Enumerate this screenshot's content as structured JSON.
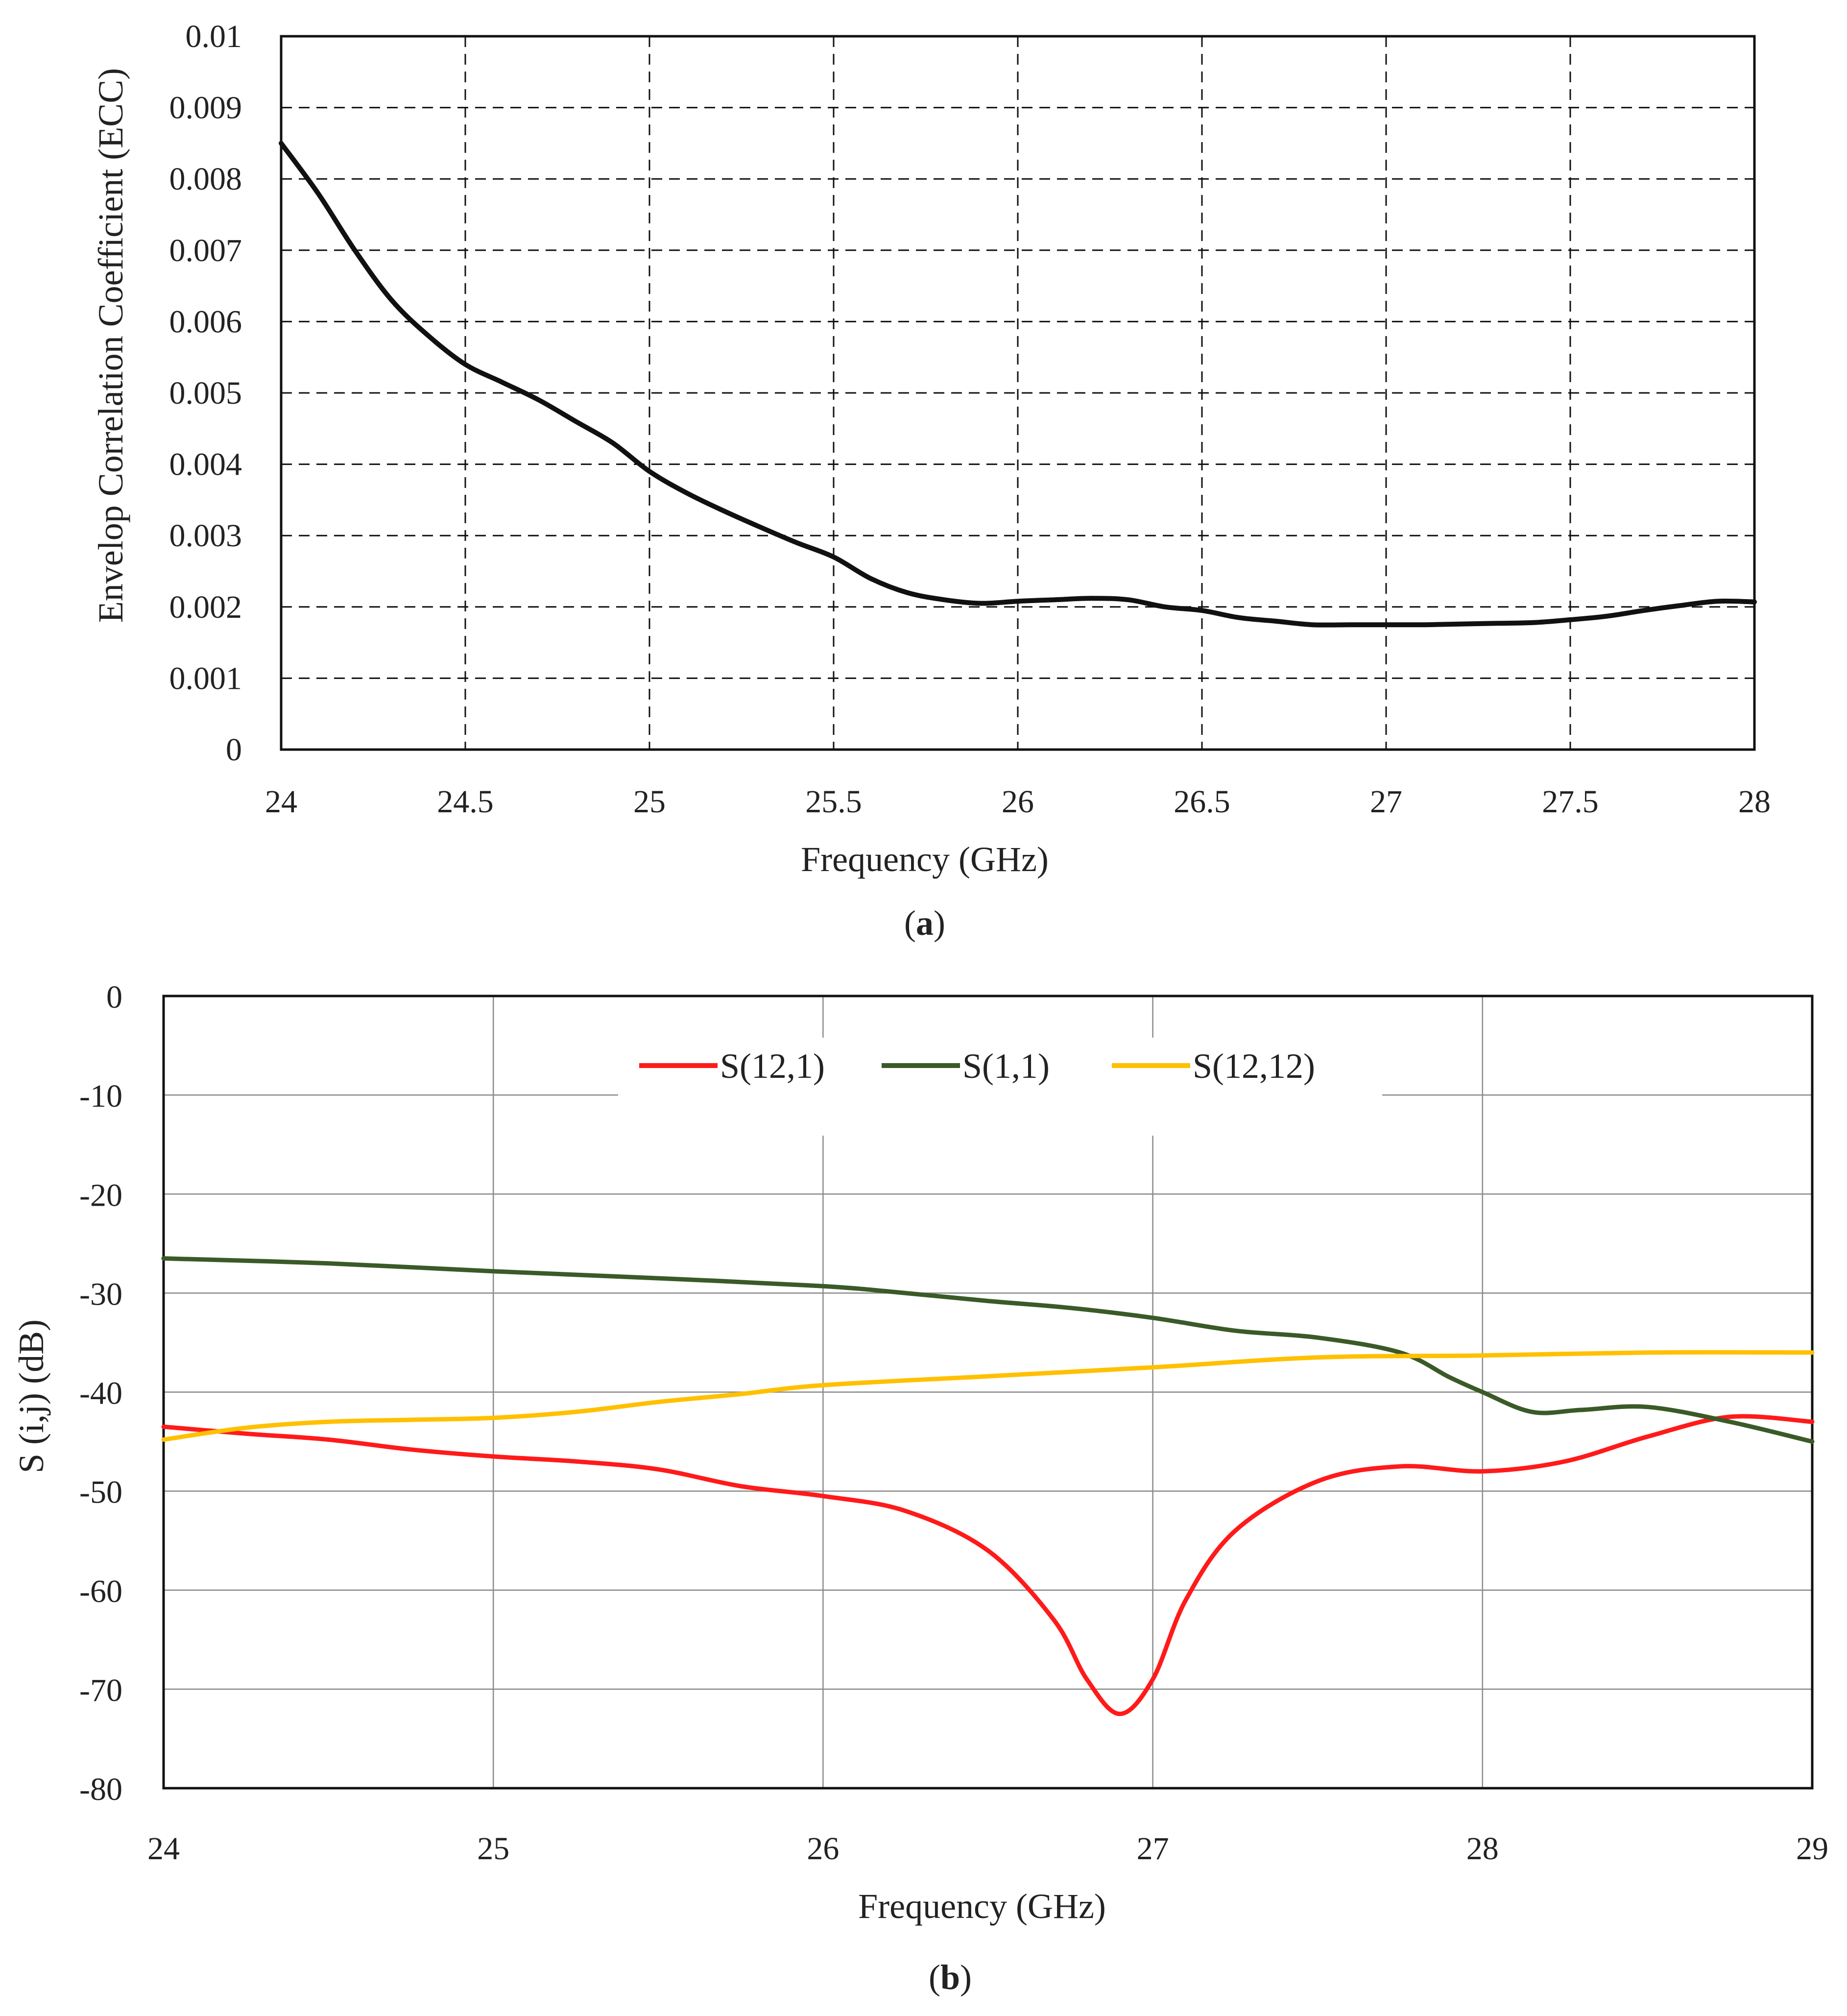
{
  "chart_data": [
    {
      "id": "a",
      "type": "line",
      "caption_label": "a",
      "xlabel": "Frequency (GHz)",
      "ylabel": "Envelop Correlation Coefficient (ECC)",
      "xlim": [
        24,
        28
      ],
      "ylim": [
        0,
        0.01
      ],
      "xticks": [
        24,
        24.5,
        25,
        25.5,
        26,
        26.5,
        27,
        27.5,
        28
      ],
      "yticks": [
        0,
        0.001,
        0.002,
        0.003,
        0.004,
        0.005,
        0.006,
        0.007,
        0.008,
        0.009,
        0.01
      ],
      "xtick_labels": [
        "24",
        "24.5",
        "25",
        "25.5",
        "26",
        "26.5",
        "27",
        "27.5",
        "28"
      ],
      "ytick_labels": [
        "0",
        "0.001",
        "0.002",
        "0.003",
        "0.004",
        "0.005",
        "0.006",
        "0.007",
        "0.008",
        "0.009",
        "0.01"
      ],
      "grid": "dashed",
      "series": [
        {
          "name": "ECC",
          "color": "#111111",
          "x": [
            24.0,
            24.1,
            24.2,
            24.3,
            24.4,
            24.5,
            24.6,
            24.7,
            24.8,
            24.9,
            25.0,
            25.1,
            25.2,
            25.3,
            25.4,
            25.5,
            25.6,
            25.7,
            25.8,
            25.9,
            26.0,
            26.1,
            26.2,
            26.3,
            26.4,
            26.5,
            26.6,
            26.7,
            26.8,
            26.9,
            27.0,
            27.1,
            27.2,
            27.3,
            27.4,
            27.5,
            27.6,
            27.7,
            27.8,
            27.9,
            28.0
          ],
          "y": [
            0.0085,
            0.0078,
            0.007,
            0.0063,
            0.0058,
            0.0054,
            0.00515,
            0.0049,
            0.0046,
            0.0043,
            0.0039,
            0.0036,
            0.00335,
            0.00312,
            0.0029,
            0.0027,
            0.0024,
            0.0022,
            0.0021,
            0.00205,
            0.00208,
            0.0021,
            0.00212,
            0.0021,
            0.002,
            0.00195,
            0.00185,
            0.0018,
            0.00175,
            0.00175,
            0.00175,
            0.00175,
            0.00176,
            0.00177,
            0.00178,
            0.00182,
            0.00187,
            0.00195,
            0.00202,
            0.00208,
            0.00207
          ]
        }
      ]
    },
    {
      "id": "b",
      "type": "line",
      "caption_label": "b",
      "xlabel": "Frequency (GHz)",
      "ylabel": "S (i,j) (dB)",
      "xlim": [
        24,
        29
      ],
      "ylim": [
        -80,
        0
      ],
      "xticks": [
        24,
        25,
        26,
        27,
        28,
        29
      ],
      "yticks": [
        0,
        -10,
        -20,
        -30,
        -40,
        -50,
        -60,
        -70,
        -80
      ],
      "xtick_labels": [
        "24",
        "25",
        "26",
        "27",
        "28",
        "29"
      ],
      "ytick_labels": [
        "0",
        "-10",
        "-20",
        "-30",
        "-40",
        "-50",
        "-60",
        "-70",
        "-80"
      ],
      "grid": "solid",
      "legend_position": "top-center",
      "series": [
        {
          "name": "S(12,1)",
          "color": "#ff1a1a",
          "x": [
            24.0,
            24.25,
            24.5,
            24.75,
            25.0,
            25.25,
            25.5,
            25.75,
            26.0,
            26.25,
            26.5,
            26.7,
            26.8,
            26.9,
            27.0,
            27.1,
            27.25,
            27.5,
            27.75,
            28.0,
            28.25,
            28.5,
            28.75,
            29.0
          ],
          "y": [
            -43.5,
            -44.2,
            -44.8,
            -45.8,
            -46.5,
            -47.0,
            -47.8,
            -49.5,
            -50.5,
            -52.0,
            -56.0,
            -63.0,
            -69.0,
            -72.5,
            -69.0,
            -61.0,
            -54.0,
            -49.0,
            -47.5,
            -48.0,
            -47.0,
            -44.5,
            -42.5,
            -43.0
          ]
        },
        {
          "name": "S(1,1)",
          "color": "#3a5a27",
          "x": [
            24.0,
            24.5,
            25.0,
            25.5,
            26.0,
            26.25,
            26.5,
            26.75,
            27.0,
            27.25,
            27.5,
            27.75,
            27.9,
            28.0,
            28.15,
            28.3,
            28.5,
            28.75,
            29.0
          ],
          "y": [
            -26.5,
            -27.0,
            -27.8,
            -28.5,
            -29.3,
            -30.0,
            -30.8,
            -31.5,
            -32.5,
            -33.8,
            -34.5,
            -36.0,
            -38.5,
            -40.0,
            -42.0,
            -41.8,
            -41.5,
            -43.0,
            -45.0
          ]
        },
        {
          "name": "S(12,12)",
          "color": "#ffc000",
          "x": [
            24.0,
            24.25,
            24.5,
            24.75,
            25.0,
            25.25,
            25.5,
            25.75,
            26.0,
            26.5,
            27.0,
            27.5,
            28.0,
            28.5,
            29.0
          ],
          "y": [
            -44.8,
            -43.6,
            -43.0,
            -42.8,
            -42.6,
            -42.0,
            -41.0,
            -40.2,
            -39.3,
            -38.4,
            -37.5,
            -36.5,
            -36.3,
            -36.0,
            -36.0
          ]
        }
      ]
    }
  ]
}
